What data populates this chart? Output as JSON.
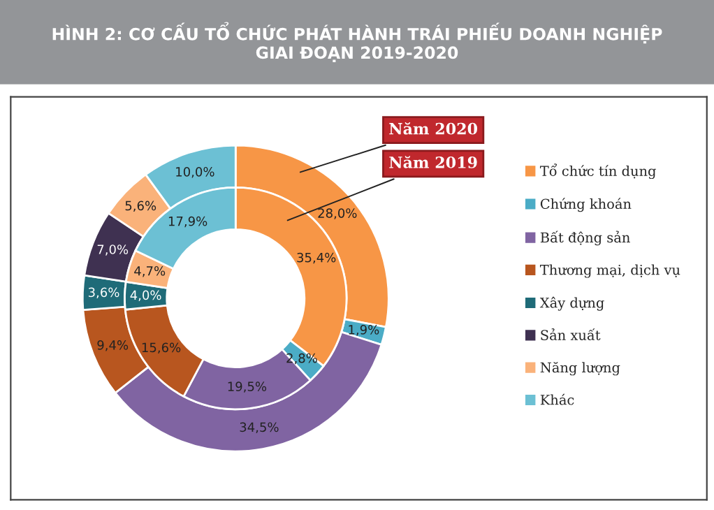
{
  "chart_data": {
    "type": "donut",
    "title": "HÌNH 2: CƠ CẤU TỔ CHỨC PHÁT HÀNH TRÁI PHIẾU DOANH NGHIỆP\nGIAI ĐOẠN 2019-2020",
    "categories": [
      "Tổ chức tín dụng",
      "Chứng khoán",
      "Bất động sản",
      "Thương mại, dịch vụ",
      "Xây dựng",
      "Sản xuất",
      "Năng lượng",
      "Khác"
    ],
    "colors": [
      "#f79646",
      "#4bacc6",
      "#8064a2",
      "#b8561f",
      "#1f6b78",
      "#3f3151",
      "#fab27a",
      "#6cc0d4"
    ],
    "series": [
      {
        "name": "Năm 2020",
        "values": [
          28.0,
          1.9,
          34.5,
          9.4,
          3.6,
          7.0,
          5.6,
          10.0
        ],
        "value_labels": [
          "28,0%",
          "1,9%",
          "34,5%",
          "9,4%",
          "3,6%",
          "7,0%",
          "5,6%",
          "10,0%"
        ]
      },
      {
        "name": "Năm 2019",
        "values": [
          35.4,
          2.8,
          19.5,
          15.6,
          4.0,
          null,
          4.7,
          17.9
        ],
        "value_labels": [
          "35,4%",
          "2,8%",
          "19,5%",
          "15,6%",
          "4,0%",
          null,
          "4,7%",
          "17,9%"
        ]
      }
    ],
    "legend": "right"
  }
}
